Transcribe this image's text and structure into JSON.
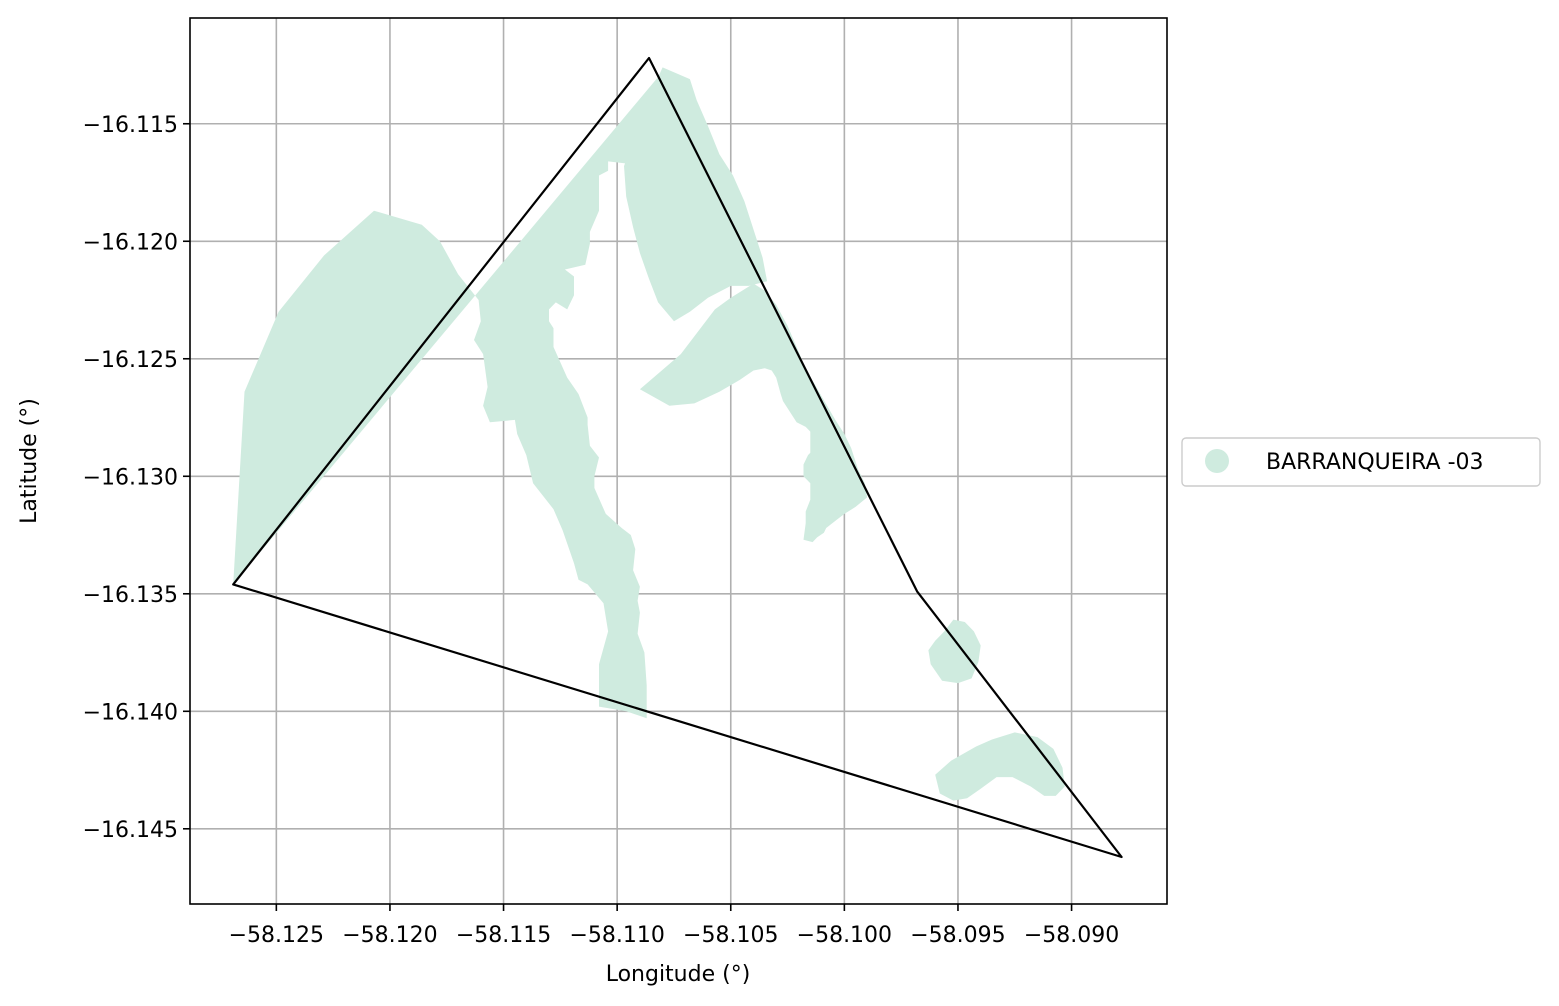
{
  "chart_data": {
    "type": "map",
    "xlabel": "Longitude (°)",
    "ylabel": "Latitude (°)",
    "xlim": [
      -58.1288,
      -58.0858
    ],
    "ylim": [
      -16.1482,
      -16.1105
    ],
    "xticks": [
      -58.125,
      -58.12,
      -58.115,
      -58.11,
      -58.105,
      -58.1,
      -58.095,
      -58.09
    ],
    "xtick_labels": [
      "−58.125",
      "−58.120",
      "−58.115",
      "−58.110",
      "−58.105",
      "−58.100",
      "−58.095",
      "−58.090"
    ],
    "yticks": [
      -16.115,
      -16.12,
      -16.125,
      -16.13,
      -16.135,
      -16.14,
      -16.145
    ],
    "ytick_labels": [
      "−16.115",
      "−16.120",
      "−16.125",
      "−16.130",
      "−16.135",
      "−16.140",
      "−16.145"
    ],
    "grid": true,
    "legend": {
      "position": "right-outside",
      "entries": [
        {
          "label": "BARRANQUEIRA -03",
          "color": "#cfebdf"
        }
      ]
    },
    "boundary": {
      "color": "#000000",
      "points": [
        [
          -58.1086,
          -16.1122
        ],
        [
          -58.0968,
          -16.1349
        ],
        [
          -58.0878,
          -16.1462
        ],
        [
          -58.1269,
          -16.1346
        ]
      ]
    },
    "regions": [
      {
        "name": "BARRANQUEIRA -03",
        "color": "#cfebdf",
        "points": [
          [
            -58.1269,
            -16.1346
          ],
          [
            -58.1081,
            -16.1129
          ],
          [
            -58.1089,
            -16.1147
          ],
          [
            -58.1082,
            -16.1165
          ],
          [
            -58.1086,
            -16.1168
          ],
          [
            -58.1104,
            -16.1166
          ],
          [
            -58.1104,
            -16.117
          ],
          [
            -58.1108,
            -16.1172
          ],
          [
            -58.1108,
            -16.1187
          ],
          [
            -58.1112,
            -16.1196
          ],
          [
            -58.1112,
            -16.1201
          ],
          [
            -58.1114,
            -16.121
          ],
          [
            -58.1123,
            -16.1212
          ],
          [
            -58.1119,
            -16.1215
          ],
          [
            -58.1119,
            -16.1223
          ],
          [
            -58.1122,
            -16.1229
          ],
          [
            -58.1127,
            -16.1226
          ],
          [
            -58.113,
            -16.1229
          ],
          [
            -58.113,
            -16.1234
          ],
          [
            -58.1128,
            -16.1237
          ],
          [
            -58.1128,
            -16.1245
          ],
          [
            -58.1122,
            -16.1258
          ],
          [
            -58.1117,
            -16.1265
          ],
          [
            -58.1113,
            -16.1275
          ],
          [
            -58.1113,
            -16.1278
          ],
          [
            -58.1112,
            -16.1287
          ],
          [
            -58.1108,
            -16.1292
          ],
          [
            -58.111,
            -16.13
          ],
          [
            -58.111,
            -16.1305
          ],
          [
            -58.1105,
            -16.1316
          ],
          [
            -58.1098,
            -16.1322
          ],
          [
            -58.1094,
            -16.1325
          ],
          [
            -58.1092,
            -16.1331
          ],
          [
            -58.1093,
            -16.134
          ],
          [
            -58.109,
            -16.1347
          ],
          [
            -58.1091,
            -16.1353
          ],
          [
            -58.109,
            -16.1358
          ],
          [
            -58.1091,
            -16.1367
          ],
          [
            -58.1088,
            -16.1375
          ],
          [
            -58.1087,
            -16.1389
          ],
          [
            -58.1087,
            -16.1403
          ],
          [
            -58.1096,
            -16.14
          ],
          [
            -58.1108,
            -16.1398
          ],
          [
            -58.1108,
            -16.138
          ],
          [
            -58.1104,
            -16.1366
          ],
          [
            -58.1106,
            -16.1354
          ],
          [
            -58.1113,
            -16.1346
          ],
          [
            -58.1117,
            -16.1344
          ],
          [
            -58.1119,
            -16.1337
          ],
          [
            -58.1124,
            -16.1323
          ],
          [
            -58.1128,
            -16.1314
          ],
          [
            -58.1137,
            -16.1303
          ],
          [
            -58.114,
            -16.1291
          ],
          [
            -58.1144,
            -16.1282
          ],
          [
            -58.1145,
            -16.1276
          ],
          [
            -58.1156,
            -16.1277
          ],
          [
            -58.1159,
            -16.127
          ],
          [
            -58.1157,
            -16.1262
          ],
          [
            -58.1159,
            -16.1248
          ],
          [
            -58.1163,
            -16.1242
          ],
          [
            -58.116,
            -16.1234
          ],
          [
            -58.1161,
            -16.1225
          ],
          [
            -58.117,
            -16.1214
          ],
          [
            -58.1178,
            -16.12
          ],
          [
            -58.1186,
            -16.1193
          ],
          [
            -58.1207,
            -16.1187
          ],
          [
            -58.1229,
            -16.1206
          ],
          [
            -58.1249,
            -16.123
          ],
          [
            -58.1264,
            -16.1264
          ],
          [
            -58.1269,
            -16.1346
          ]
        ]
      },
      {
        "name": "BARRANQUEIRA -03",
        "color": "#cfebdf",
        "points": [
          [
            -58.108,
            -16.1126
          ],
          [
            -58.1068,
            -16.1131
          ],
          [
            -58.1065,
            -16.114
          ],
          [
            -58.106,
            -16.1151
          ],
          [
            -58.1055,
            -16.1163
          ],
          [
            -58.1049,
            -16.1172
          ],
          [
            -58.1044,
            -16.1183
          ],
          [
            -58.104,
            -16.1195
          ],
          [
            -58.1036,
            -16.1207
          ],
          [
            -58.1034,
            -16.1217
          ],
          [
            -58.1042,
            -16.1219
          ],
          [
            -58.105,
            -16.1219
          ],
          [
            -58.106,
            -16.1224
          ],
          [
            -58.1068,
            -16.123
          ],
          [
            -58.1075,
            -16.1234
          ],
          [
            -58.1082,
            -16.1226
          ],
          [
            -58.1086,
            -16.1216
          ],
          [
            -58.109,
            -16.1205
          ],
          [
            -58.1093,
            -16.1194
          ],
          [
            -58.1096,
            -16.1181
          ],
          [
            -58.1097,
            -16.1168
          ],
          [
            -58.1092,
            -16.1155
          ],
          [
            -58.1087,
            -16.1141
          ],
          [
            -58.108,
            -16.1126
          ]
        ]
      },
      {
        "name": "BARRANQUEIRA -03",
        "color": "#cfebdf",
        "points": [
          [
            -58.104,
            -16.1218
          ],
          [
            -58.105,
            -16.1224
          ],
          [
            -58.1057,
            -16.1229
          ],
          [
            -58.1072,
            -16.1248
          ],
          [
            -58.109,
            -16.1263
          ],
          [
            -58.1077,
            -16.127
          ],
          [
            -58.1066,
            -16.1269
          ],
          [
            -58.1055,
            -16.1264
          ],
          [
            -58.1046,
            -16.1259
          ],
          [
            -58.104,
            -16.1255
          ],
          [
            -58.1035,
            -16.1254
          ],
          [
            -58.1032,
            -16.1255
          ],
          [
            -58.103,
            -16.1258
          ],
          [
            -58.1028,
            -16.1265
          ],
          [
            -58.1027,
            -16.1268
          ],
          [
            -58.1023,
            -16.1274
          ],
          [
            -58.1021,
            -16.1277
          ],
          [
            -58.1017,
            -16.1279
          ],
          [
            -58.1015,
            -16.1281
          ],
          [
            -58.1015,
            -16.1286
          ],
          [
            -58.1015,
            -16.129
          ],
          [
            -58.1016,
            -16.1291
          ],
          [
            -58.1018,
            -16.1295
          ],
          [
            -58.1018,
            -16.13
          ],
          [
            -58.1015,
            -16.1303
          ],
          [
            -58.1015,
            -16.131
          ],
          [
            -58.1017,
            -16.1315
          ],
          [
            -58.1017,
            -16.132
          ],
          [
            -58.1018,
            -16.1327
          ],
          [
            -58.1014,
            -16.1328
          ],
          [
            -58.1012,
            -16.1326
          ],
          [
            -58.1009,
            -16.1324
          ],
          [
            -58.1008,
            -16.1322
          ],
          [
            -58.1004,
            -16.1319
          ],
          [
            -58.1,
            -16.1316
          ],
          [
            -58.0995,
            -16.1313
          ],
          [
            -58.099,
            -16.1309
          ],
          [
            -58.0991,
            -16.1303
          ],
          [
            -58.0994,
            -16.1297
          ],
          [
            -58.0997,
            -16.1288
          ],
          [
            -58.1,
            -16.1282
          ],
          [
            -58.1004,
            -16.1276
          ],
          [
            -58.101,
            -16.1266
          ],
          [
            -58.1017,
            -16.1254
          ],
          [
            -58.1021,
            -16.1245
          ],
          [
            -58.1025,
            -16.1236
          ],
          [
            -58.103,
            -16.1227
          ],
          [
            -58.1035,
            -16.1221
          ],
          [
            -58.104,
            -16.1218
          ]
        ]
      },
      {
        "name": "BARRANQUEIRA -03",
        "color": "#cfebdf",
        "points": [
          [
            -58.0943,
            -16.1366
          ],
          [
            -58.0947,
            -16.1362
          ],
          [
            -58.0952,
            -16.1361
          ],
          [
            -58.0956,
            -16.1366
          ],
          [
            -58.096,
            -16.137
          ],
          [
            -58.0963,
            -16.1374
          ],
          [
            -58.0962,
            -16.138
          ],
          [
            -58.0957,
            -16.1387
          ],
          [
            -58.095,
            -16.1388
          ],
          [
            -58.0944,
            -16.1386
          ],
          [
            -58.0941,
            -16.1379
          ],
          [
            -58.094,
            -16.1372
          ],
          [
            -58.0943,
            -16.1366
          ]
        ]
      },
      {
        "name": "BARRANQUEIRA -03",
        "color": "#cfebdf",
        "points": [
          [
            -58.096,
            -16.1427
          ],
          [
            -58.0953,
            -16.1421
          ],
          [
            -58.0942,
            -16.1415
          ],
          [
            -58.0935,
            -16.1412
          ],
          [
            -58.0925,
            -16.1409
          ],
          [
            -58.0915,
            -16.1411
          ],
          [
            -58.0908,
            -16.1416
          ],
          [
            -58.0904,
            -16.1424
          ],
          [
            -58.0903,
            -16.1432
          ],
          [
            -58.0907,
            -16.1436
          ],
          [
            -58.0912,
            -16.1436
          ],
          [
            -58.0918,
            -16.1432
          ],
          [
            -58.0926,
            -16.1428
          ],
          [
            -58.0933,
            -16.1428
          ],
          [
            -58.094,
            -16.1433
          ],
          [
            -58.0946,
            -16.1437
          ],
          [
            -58.0952,
            -16.1438
          ],
          [
            -58.0958,
            -16.1435
          ],
          [
            -58.096,
            -16.1427
          ]
        ]
      }
    ]
  }
}
